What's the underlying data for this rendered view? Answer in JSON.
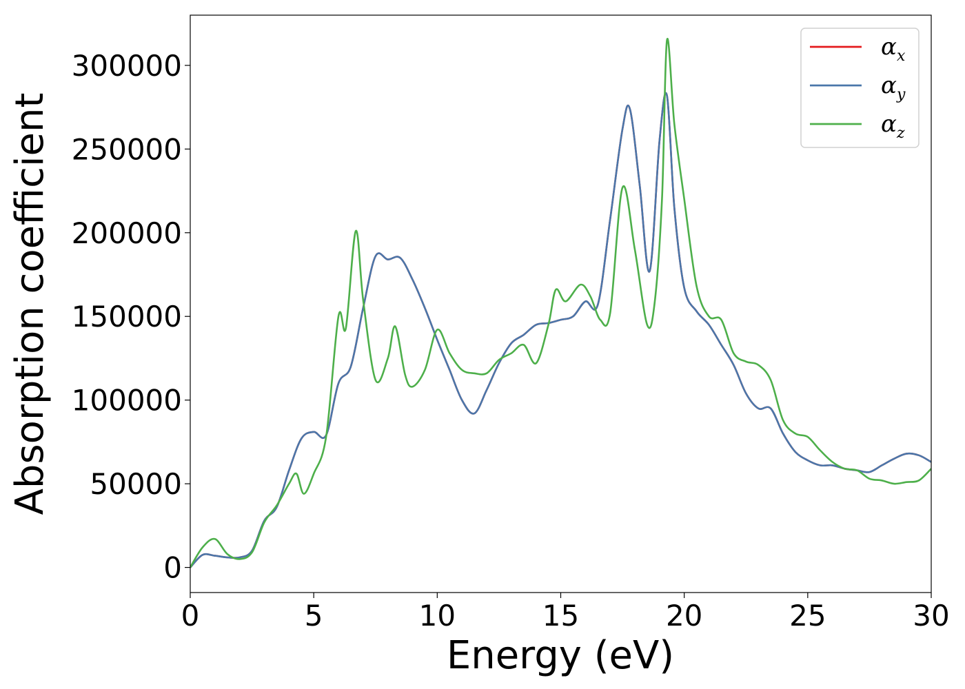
{
  "chart_data": {
    "type": "line",
    "xlabel": "Energy (eV)",
    "ylabel": "Absorption coefficient",
    "xlim": [
      0,
      30
    ],
    "ylim": [
      -15000,
      330000
    ],
    "xticks": [
      0,
      5,
      10,
      15,
      20,
      25,
      30
    ],
    "yticks": [
      0,
      50000,
      100000,
      150000,
      200000,
      250000,
      300000
    ],
    "grid": false,
    "legend_position": "top-right",
    "series": [
      {
        "name": "α_x",
        "label_main": "α",
        "label_sub": "x",
        "color": "#e41a1c",
        "x": [
          0,
          0.5,
          1,
          1.5,
          2,
          2.5,
          3,
          3.5,
          4,
          4.5,
          5,
          5.5,
          6,
          6.5,
          7,
          7.5,
          8,
          8.5,
          9,
          9.5,
          10,
          10.5,
          11,
          11.5,
          12,
          12.5,
          13,
          13.5,
          14,
          14.5,
          15,
          15.5,
          16,
          16.5,
          17,
          17.5,
          17.8,
          18.2,
          18.6,
          19,
          19.3,
          19.6,
          20,
          20.5,
          21,
          21.5,
          22,
          22.5,
          23,
          23.5,
          24,
          24.5,
          25,
          25.5,
          26,
          26.5,
          27,
          27.5,
          28,
          28.5,
          29,
          29.5,
          30
        ],
        "y": [
          0,
          7500,
          7000,
          6000,
          6000,
          10000,
          28000,
          36000,
          58000,
          77000,
          81000,
          79000,
          110000,
          120000,
          155000,
          186000,
          184000,
          185000,
          172000,
          155000,
          136000,
          118000,
          100000,
          92000,
          106000,
          122000,
          134000,
          139000,
          145000,
          146000,
          148000,
          150000,
          159000,
          157000,
          208000,
          262000,
          274000,
          228000,
          177000,
          255000,
          282000,
          215000,
          167000,
          153000,
          145000,
          133000,
          121000,
          104000,
          95000,
          95000,
          80000,
          69000,
          64000,
          61000,
          61000,
          59000,
          58000,
          57000,
          61000,
          65000,
          68000,
          67000,
          63000
        ]
      },
      {
        "name": "α_y",
        "label_main": "α",
        "label_sub": "y",
        "color": "#4a77aa",
        "x": [
          0,
          0.5,
          1,
          1.5,
          2,
          2.5,
          3,
          3.5,
          4,
          4.5,
          5,
          5.5,
          6,
          6.5,
          7,
          7.5,
          8,
          8.5,
          9,
          9.5,
          10,
          10.5,
          11,
          11.5,
          12,
          12.5,
          13,
          13.5,
          14,
          14.5,
          15,
          15.5,
          16,
          16.5,
          17,
          17.5,
          17.8,
          18.2,
          18.6,
          19,
          19.3,
          19.6,
          20,
          20.5,
          21,
          21.5,
          22,
          22.5,
          23,
          23.5,
          24,
          24.5,
          25,
          25.5,
          26,
          26.5,
          27,
          27.5,
          28,
          28.5,
          29,
          29.5,
          30
        ],
        "y": [
          0,
          7500,
          7000,
          6000,
          6000,
          10000,
          28000,
          36000,
          58000,
          77000,
          81000,
          79000,
          110000,
          120000,
          155000,
          186000,
          184000,
          185000,
          172000,
          155000,
          136000,
          118000,
          100000,
          92000,
          106000,
          122000,
          134000,
          139000,
          145000,
          146000,
          148000,
          150000,
          159000,
          157000,
          208000,
          262000,
          274000,
          228000,
          177000,
          255000,
          282000,
          215000,
          167000,
          153000,
          145000,
          133000,
          121000,
          104000,
          95000,
          95000,
          80000,
          69000,
          64000,
          61000,
          61000,
          59000,
          58000,
          57000,
          61000,
          65000,
          68000,
          67000,
          63000
        ]
      },
      {
        "name": "α_z",
        "label_main": "α",
        "label_sub": "z",
        "color": "#4daf4a",
        "x": [
          0,
          0.5,
          1,
          1.5,
          2,
          2.5,
          3,
          3.5,
          4,
          4.3,
          4.6,
          5,
          5.5,
          6,
          6.3,
          6.7,
          7,
          7.5,
          8,
          8.3,
          8.7,
          9,
          9.5,
          10,
          10.5,
          11,
          11.5,
          12,
          12.5,
          13,
          13.5,
          14,
          14.5,
          14.8,
          15.2,
          15.8,
          16.2,
          16.6,
          17,
          17.5,
          18,
          18.5,
          18.8,
          19.1,
          19.3,
          19.6,
          20,
          20.5,
          21,
          21.5,
          22,
          22.5,
          23,
          23.5,
          24,
          24.5,
          25,
          25.5,
          26,
          26.5,
          27,
          27.5,
          28,
          28.5,
          29,
          29.5,
          30
        ],
        "y": [
          0,
          12000,
          17000,
          8000,
          5000,
          9000,
          27000,
          37000,
          50000,
          56000,
          44000,
          56000,
          78000,
          150000,
          143000,
          201000,
          160000,
          112000,
          125000,
          144000,
          115000,
          108000,
          118000,
          142000,
          128000,
          118000,
          116000,
          116000,
          124000,
          128000,
          133000,
          122000,
          145000,
          166000,
          159000,
          169000,
          162000,
          148000,
          152000,
          227000,
          190000,
          145000,
          158000,
          220000,
          315000,
          265000,
          220000,
          168000,
          150000,
          148000,
          128000,
          123000,
          121000,
          112000,
          88000,
          80000,
          78000,
          70000,
          63000,
          59000,
          58000,
          53000,
          52000,
          50000,
          51000,
          52000,
          59000
        ]
      }
    ]
  }
}
